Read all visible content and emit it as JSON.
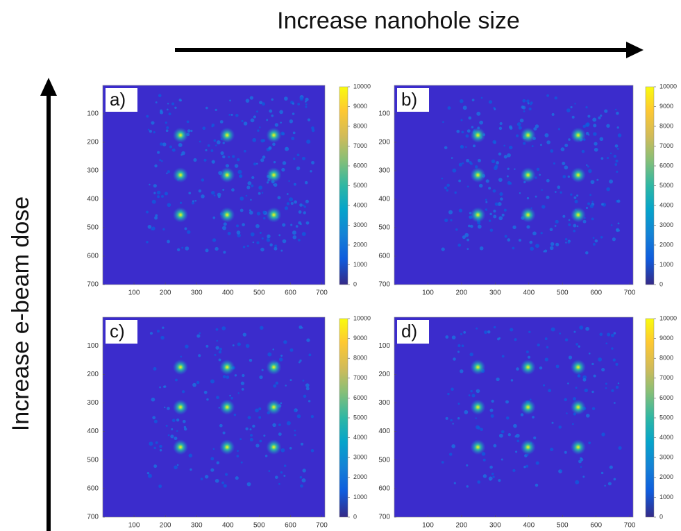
{
  "figure": {
    "title_x": "Increase nanohole size",
    "title_y": "Increase e-beam dose",
    "panels": [
      {
        "label": "a)",
        "xlim": [
          0,
          710
        ],
        "ylim": [
          0,
          700
        ],
        "xticks": [
          100,
          200,
          300,
          400,
          500,
          600,
          700
        ],
        "yticks": [
          100,
          200,
          300,
          400,
          500,
          600,
          700
        ],
        "clim": [
          0,
          10000
        ],
        "cticks": [
          0,
          1000,
          2000,
          3000,
          4000,
          5000,
          6000,
          7000,
          8000,
          9000,
          10000
        ]
      },
      {
        "label": "b)",
        "xlim": [
          0,
          710
        ],
        "ylim": [
          0,
          700
        ],
        "xticks": [
          100,
          200,
          300,
          400,
          500,
          600,
          700
        ],
        "yticks": [
          100,
          200,
          300,
          400,
          500,
          600,
          700
        ],
        "clim": [
          0,
          10000
        ],
        "cticks": [
          0,
          1000,
          2000,
          3000,
          4000,
          5000,
          6000,
          7000,
          8000,
          9000,
          10000
        ]
      },
      {
        "label": "c)",
        "xlim": [
          0,
          710
        ],
        "ylim": [
          0,
          700
        ],
        "xticks": [
          100,
          200,
          300,
          400,
          500,
          600,
          700
        ],
        "yticks": [
          100,
          200,
          300,
          400,
          500,
          600,
          700
        ],
        "clim": [
          0,
          10000
        ],
        "cticks": [
          0,
          1000,
          2000,
          3000,
          4000,
          5000,
          6000,
          7000,
          8000,
          9000,
          10000
        ]
      },
      {
        "label": "d)",
        "xlim": [
          0,
          710
        ],
        "ylim": [
          0,
          700
        ],
        "xticks": [
          100,
          200,
          300,
          400,
          500,
          600,
          700
        ],
        "yticks": [
          100,
          200,
          300,
          400,
          500,
          600,
          700
        ],
        "clim": [
          0,
          10000
        ],
        "cticks": [
          0,
          1000,
          2000,
          3000,
          4000,
          5000,
          6000,
          7000,
          8000,
          9000,
          10000
        ]
      }
    ]
  }
}
